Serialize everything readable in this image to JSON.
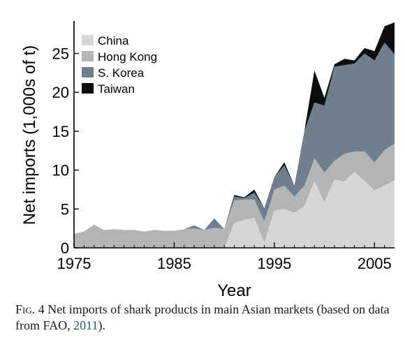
{
  "chart_data": {
    "type": "area",
    "stacked": true,
    "xlabel": "Year",
    "ylabel": "Net imports (1,000s of t)",
    "xlim": [
      1975,
      2007
    ],
    "ylim": [
      0,
      29
    ],
    "xticks": [
      1975,
      1985,
      1995,
      2005
    ],
    "yticks": [
      0,
      5,
      10,
      15,
      20,
      25
    ],
    "grid": false,
    "legend_position": "top-left",
    "x": [
      1975,
      1976,
      1977,
      1978,
      1979,
      1980,
      1981,
      1982,
      1983,
      1984,
      1985,
      1986,
      1987,
      1988,
      1989,
      1990,
      1991,
      1992,
      1993,
      1994,
      1995,
      1996,
      1997,
      1998,
      1999,
      2000,
      2001,
      2002,
      2003,
      2004,
      2005,
      2006,
      2007
    ],
    "series": [
      {
        "name": "China",
        "color": "#d6d6d6",
        "values": [
          0,
          0,
          0,
          0,
          0,
          0,
          0,
          0,
          0,
          0,
          0,
          0,
          0,
          0,
          0,
          0,
          3.2,
          3.6,
          3.9,
          0.7,
          4.8,
          5.0,
          4.5,
          5.4,
          8.6,
          5.9,
          8.8,
          8.5,
          9.8,
          8.6,
          7.4,
          8.0,
          8.7
        ]
      },
      {
        "name": "Hong Kong",
        "color": "#b4b4b4",
        "values": [
          1.8,
          2.1,
          3.0,
          2.3,
          2.4,
          2.3,
          2.3,
          2.1,
          2.3,
          2.2,
          2.2,
          2.4,
          2.5,
          2.3,
          2.6,
          2.4,
          2.9,
          2.6,
          2.3,
          2.7,
          2.7,
          3.0,
          2.1,
          2.6,
          2.9,
          3.8,
          2.4,
          3.6,
          2.6,
          3.8,
          3.6,
          4.6,
          4.7
        ]
      },
      {
        "name": "S. Korea",
        "color": "#6f7f8d",
        "values": [
          0,
          0,
          0,
          0,
          0,
          0,
          0,
          0,
          0,
          0,
          0,
          0,
          0.4,
          0,
          1.2,
          0,
          0.5,
          0.2,
          0.9,
          1.7,
          1.6,
          2.6,
          1.4,
          7.0,
          7.2,
          8.6,
          12.1,
          11.4,
          11.3,
          12.6,
          13.1,
          13.8,
          11.5
        ]
      },
      {
        "name": "Taiwan",
        "color": "#0d0d0d",
        "values": [
          0,
          0,
          0,
          0,
          0,
          0,
          0,
          0,
          0,
          0,
          0,
          0,
          0,
          0,
          0,
          0,
          0.2,
          0.1,
          0.4,
          0,
          0,
          0.4,
          0,
          0,
          4.1,
          1.0,
          0.3,
          0.8,
          0.4,
          0.7,
          1.2,
          2.1,
          4.1
        ]
      }
    ]
  },
  "caption": {
    "label": "Fig. 4",
    "text": " Net imports of shark products in main Asian markets (based on data from FAO, ",
    "citation": "2011",
    "end": ")."
  }
}
